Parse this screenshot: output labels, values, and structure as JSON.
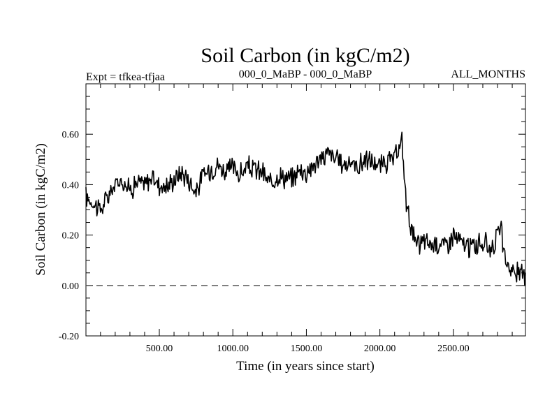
{
  "chart_data": {
    "type": "line",
    "title": "Soil Carbon (in kgC/m2)",
    "subtitle_left": "Expt = tfkea-tfjaa",
    "subtitle_center": "000_0_MaBP - 000_0_MaBP",
    "subtitle_right": "ALL_MONTHS",
    "xlabel": "Time (in years since start)",
    "ylabel": "Soil Carbon (in kgC/m2)",
    "xlim": [
      1,
      2990
    ],
    "ylim": [
      -0.2,
      0.8
    ],
    "x_ticks": [
      500,
      1000,
      1500,
      2000,
      2500
    ],
    "x_tick_labels": [
      "500.00",
      "1000.00",
      "1500.00",
      "2000.00",
      "2500.00"
    ],
    "y_ticks": [
      -0.2,
      0.0,
      0.2,
      0.4,
      0.6
    ],
    "y_tick_labels": [
      "-0.20",
      "0.00",
      "0.20",
      "0.40",
      "0.60"
    ],
    "zero_line": "dashed",
    "grid": false,
    "series": [
      {
        "x": [
          1,
          50,
          100,
          150,
          200,
          250,
          300,
          350,
          400,
          450,
          500,
          550,
          600,
          650,
          700,
          750,
          800,
          850,
          900,
          950,
          1000,
          1050,
          1100,
          1150,
          1200,
          1250,
          1300,
          1350,
          1400,
          1450,
          1500,
          1550,
          1600,
          1650,
          1700,
          1750,
          1800,
          1850,
          1900,
          1950,
          2000,
          2050,
          2100,
          2130,
          2150,
          2165,
          2180,
          2200,
          2220,
          2250,
          2300,
          2350,
          2400,
          2450,
          2500,
          2550,
          2600,
          2650,
          2700,
          2750,
          2800,
          2820,
          2850,
          2900,
          2950,
          2990
        ],
        "values": [
          0.35,
          0.33,
          0.3,
          0.35,
          0.4,
          0.42,
          0.38,
          0.41,
          0.4,
          0.43,
          0.4,
          0.39,
          0.42,
          0.45,
          0.42,
          0.37,
          0.44,
          0.46,
          0.48,
          0.45,
          0.47,
          0.44,
          0.47,
          0.46,
          0.45,
          0.4,
          0.44,
          0.43,
          0.42,
          0.46,
          0.45,
          0.48,
          0.5,
          0.53,
          0.5,
          0.48,
          0.49,
          0.47,
          0.5,
          0.49,
          0.47,
          0.49,
          0.5,
          0.54,
          0.57,
          0.45,
          0.32,
          0.27,
          0.22,
          0.15,
          0.18,
          0.16,
          0.17,
          0.16,
          0.2,
          0.17,
          0.15,
          0.16,
          0.17,
          0.15,
          0.19,
          0.24,
          0.1,
          0.06,
          0.04,
          0.05
        ]
      }
    ]
  }
}
